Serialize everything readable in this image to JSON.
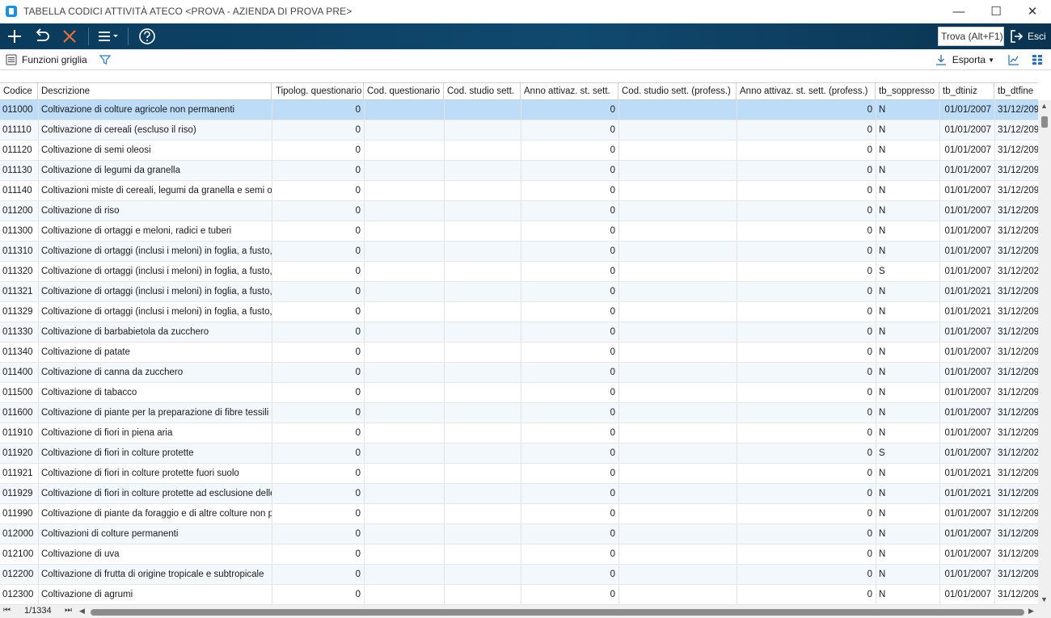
{
  "window": {
    "title": "TABELLA CODICI ATTIVITÀ ATECO <PROVA - AZIENDA DI PROVA PRE>",
    "minimize_glyph": "—",
    "maximize_glyph": "☐",
    "close_glyph": "✕"
  },
  "toolbar": {
    "find_placeholder": "Trova (Alt+F1)",
    "exit_label": "Esci",
    "icons": [
      "add-icon",
      "undo-icon",
      "delete-icon",
      "menu-icon",
      "help-icon"
    ],
    "accent_color": "#e8733a"
  },
  "subbar": {
    "grid_functions_label": "Funzioni griglia",
    "export_label": "Esporta"
  },
  "grid": {
    "columns": [
      "Codice",
      "Descrizione",
      "Tipolog. questionario",
      "Cod. questionario",
      "Cod. studio sett.",
      "Anno attivaz. st. sett.",
      "Cod. studio sett. (profess.)",
      "Anno attivaz. st. sett. (profess.)",
      "tb_soppresso",
      "tb_dtiniz",
      "tb_dtfine"
    ],
    "rows": [
      {
        "codice": "011000",
        "descrizione": "Coltivazione di colture agricole non permanenti",
        "tipolog": "0",
        "anno": "0",
        "anno_prof": "0",
        "soppresso": "N",
        "dtiniz": "01/01/2007",
        "dtfine": "31/12/209"
      },
      {
        "codice": "011110",
        "descrizione": "Coltivazione di cereali (escluso il riso)",
        "tipolog": "0",
        "anno": "0",
        "anno_prof": "0",
        "soppresso": "N",
        "dtiniz": "01/01/2007",
        "dtfine": "31/12/209"
      },
      {
        "codice": "011120",
        "descrizione": "Coltivazione di semi oleosi",
        "tipolog": "0",
        "anno": "0",
        "anno_prof": "0",
        "soppresso": "N",
        "dtiniz": "01/01/2007",
        "dtfine": "31/12/209"
      },
      {
        "codice": "011130",
        "descrizione": "Coltivazione di legumi da granella",
        "tipolog": "0",
        "anno": "0",
        "anno_prof": "0",
        "soppresso": "N",
        "dtiniz": "01/01/2007",
        "dtfine": "31/12/209"
      },
      {
        "codice": "011140",
        "descrizione": "Coltivazioni miste di cereali, legumi da granella e semi ole...",
        "tipolog": "0",
        "anno": "0",
        "anno_prof": "0",
        "soppresso": "N",
        "dtiniz": "01/01/2007",
        "dtfine": "31/12/209"
      },
      {
        "codice": "011200",
        "descrizione": "Coltivazione di riso",
        "tipolog": "0",
        "anno": "0",
        "anno_prof": "0",
        "soppresso": "N",
        "dtiniz": "01/01/2007",
        "dtfine": "31/12/209"
      },
      {
        "codice": "011300",
        "descrizione": "Coltivazione di ortaggi e meloni, radici e tuberi",
        "tipolog": "0",
        "anno": "0",
        "anno_prof": "0",
        "soppresso": "N",
        "dtiniz": "01/01/2007",
        "dtfine": "31/12/209"
      },
      {
        "codice": "011310",
        "descrizione": "Coltivazione di ortaggi (inclusi i meloni) in foglia, a fusto, ...",
        "tipolog": "0",
        "anno": "0",
        "anno_prof": "0",
        "soppresso": "N",
        "dtiniz": "01/01/2007",
        "dtfine": "31/12/209"
      },
      {
        "codice": "011320",
        "descrizione": "Coltivazione di ortaggi (inclusi i meloni) in foglia, a fusto, ...",
        "tipolog": "0",
        "anno": "0",
        "anno_prof": "0",
        "soppresso": "S",
        "dtiniz": "01/01/2007",
        "dtfine": "31/12/202"
      },
      {
        "codice": "011321",
        "descrizione": "Coltivazione di ortaggi (inclusi i meloni) in foglia, a fusto, ...",
        "tipolog": "0",
        "anno": "0",
        "anno_prof": "0",
        "soppresso": "N",
        "dtiniz": "01/01/2021",
        "dtfine": "31/12/209"
      },
      {
        "codice": "011329",
        "descrizione": "Coltivazione di ortaggi (inclusi i meloni) in foglia, a fusto, ...",
        "tipolog": "0",
        "anno": "0",
        "anno_prof": "0",
        "soppresso": "N",
        "dtiniz": "01/01/2021",
        "dtfine": "31/12/209"
      },
      {
        "codice": "011330",
        "descrizione": "Coltivazione di barbabietola da zucchero",
        "tipolog": "0",
        "anno": "0",
        "anno_prof": "0",
        "soppresso": "N",
        "dtiniz": "01/01/2007",
        "dtfine": "31/12/209"
      },
      {
        "codice": "011340",
        "descrizione": "Coltivazione di patate",
        "tipolog": "0",
        "anno": "0",
        "anno_prof": "0",
        "soppresso": "N",
        "dtiniz": "01/01/2007",
        "dtfine": "31/12/209"
      },
      {
        "codice": "011400",
        "descrizione": "Coltivazione di canna da zucchero",
        "tipolog": "0",
        "anno": "0",
        "anno_prof": "0",
        "soppresso": "N",
        "dtiniz": "01/01/2007",
        "dtfine": "31/12/209"
      },
      {
        "codice": "011500",
        "descrizione": "Coltivazione di tabacco",
        "tipolog": "0",
        "anno": "0",
        "anno_prof": "0",
        "soppresso": "N",
        "dtiniz": "01/01/2007",
        "dtfine": "31/12/209"
      },
      {
        "codice": "011600",
        "descrizione": "Coltivazione di piante per la preparazione di fibre tessili",
        "tipolog": "0",
        "anno": "0",
        "anno_prof": "0",
        "soppresso": "N",
        "dtiniz": "01/01/2007",
        "dtfine": "31/12/209"
      },
      {
        "codice": "011910",
        "descrizione": "Coltivazione di fiori in piena aria",
        "tipolog": "0",
        "anno": "0",
        "anno_prof": "0",
        "soppresso": "N",
        "dtiniz": "01/01/2007",
        "dtfine": "31/12/209"
      },
      {
        "codice": "011920",
        "descrizione": "Coltivazione di fiori in colture protette",
        "tipolog": "0",
        "anno": "0",
        "anno_prof": "0",
        "soppresso": "S",
        "dtiniz": "01/01/2007",
        "dtfine": "31/12/202"
      },
      {
        "codice": "011921",
        "descrizione": "Coltivazione di fiori in colture protette fuori suolo",
        "tipolog": "0",
        "anno": "0",
        "anno_prof": "0",
        "soppresso": "N",
        "dtiniz": "01/01/2021",
        "dtfine": "31/12/209"
      },
      {
        "codice": "011929",
        "descrizione": "Coltivazione di fiori in colture protette ad esclusione delle...",
        "tipolog": "0",
        "anno": "0",
        "anno_prof": "0",
        "soppresso": "N",
        "dtiniz": "01/01/2021",
        "dtfine": "31/12/209"
      },
      {
        "codice": "011990",
        "descrizione": "Coltivazione di piante da foraggio e di altre colture non p...",
        "tipolog": "0",
        "anno": "0",
        "anno_prof": "0",
        "soppresso": "N",
        "dtiniz": "01/01/2007",
        "dtfine": "31/12/209"
      },
      {
        "codice": "012000",
        "descrizione": "Coltivazioni di colture permanenti",
        "tipolog": "0",
        "anno": "0",
        "anno_prof": "0",
        "soppresso": "N",
        "dtiniz": "01/01/2007",
        "dtfine": "31/12/209"
      },
      {
        "codice": "012100",
        "descrizione": "Coltivazione di uva",
        "tipolog": "0",
        "anno": "0",
        "anno_prof": "0",
        "soppresso": "N",
        "dtiniz": "01/01/2007",
        "dtfine": "31/12/209"
      },
      {
        "codice": "012200",
        "descrizione": "Coltivazione di frutta di origine tropicale e subtropicale",
        "tipolog": "0",
        "anno": "0",
        "anno_prof": "0",
        "soppresso": "N",
        "dtiniz": "01/01/2007",
        "dtfine": "31/12/209"
      },
      {
        "codice": "012300",
        "descrizione": "Coltivazione di agrumi",
        "tipolog": "0",
        "anno": "0",
        "anno_prof": "0",
        "soppresso": "N",
        "dtiniz": "01/01/2007",
        "dtfine": "31/12/209"
      }
    ],
    "selected_row": 0
  },
  "footer": {
    "record_position": "1/1334"
  }
}
